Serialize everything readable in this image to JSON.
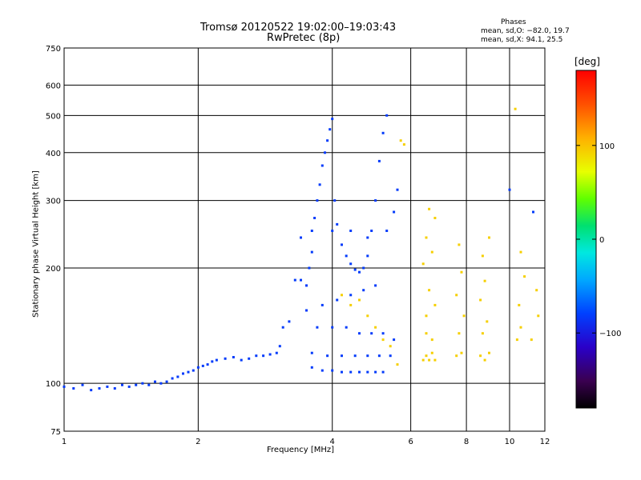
{
  "header": {
    "title_line1": "Tromsø 20120522 19:02:00–19:03:43",
    "title_line2": "RwPretec (8p)"
  },
  "phases_box": {
    "title": "Phases",
    "o_line": "mean, sd,O: −82.0, 19.7",
    "x_line": "mean, sd,X:  94.1, 25.5"
  },
  "colorbar": {
    "label": "[deg]",
    "ticks": [
      "100",
      "0",
      "−100"
    ],
    "tick_values": [
      100,
      0,
      -100
    ],
    "range": [
      -180,
      180
    ]
  },
  "chart_data": {
    "type": "scatter",
    "xlabel": "Frequency [MHz]",
    "ylabel": "Stationary phase Virtual Height [km]",
    "xscale": "log",
    "yscale": "log",
    "xlim": [
      1,
      12
    ],
    "ylim": [
      75,
      750
    ],
    "x_ticks": [
      1,
      2,
      4,
      6,
      8,
      10,
      12
    ],
    "x_tick_labels": [
      "1",
      "2",
      "4",
      "6",
      "8",
      "10",
      "12"
    ],
    "y_ticks": [
      75,
      100,
      200,
      300,
      400,
      500,
      600,
      750
    ],
    "y_tick_labels": [
      "75",
      "100",
      "200",
      "300",
      "400",
      "500",
      "600",
      "750"
    ],
    "grid": true,
    "series": [
      {
        "mode": "O",
        "phase_deg": -82.0,
        "points": [
          [
            1.0,
            98
          ],
          [
            1.05,
            97
          ],
          [
            1.1,
            99
          ],
          [
            1.15,
            96
          ],
          [
            1.2,
            97
          ],
          [
            1.25,
            98
          ],
          [
            1.3,
            97
          ],
          [
            1.35,
            99
          ],
          [
            1.4,
            98
          ],
          [
            1.45,
            99
          ],
          [
            1.5,
            100
          ],
          [
            1.55,
            99
          ],
          [
            1.6,
            101
          ],
          [
            1.65,
            100
          ],
          [
            1.7,
            101
          ],
          [
            1.75,
            103
          ],
          [
            1.8,
            104
          ],
          [
            1.85,
            106
          ],
          [
            1.9,
            107
          ],
          [
            1.95,
            108
          ],
          [
            2.0,
            110
          ],
          [
            2.05,
            111
          ],
          [
            2.1,
            112
          ],
          [
            2.15,
            114
          ],
          [
            2.2,
            115
          ],
          [
            2.3,
            116
          ],
          [
            2.4,
            117
          ],
          [
            2.5,
            115
          ],
          [
            2.6,
            116
          ],
          [
            2.7,
            118
          ],
          [
            2.8,
            118
          ],
          [
            2.9,
            119
          ],
          [
            3.0,
            120
          ],
          [
            3.05,
            125
          ],
          [
            3.1,
            140
          ],
          [
            3.2,
            145
          ],
          [
            3.3,
            186
          ],
          [
            3.4,
            186
          ],
          [
            3.5,
            180
          ],
          [
            3.55,
            200
          ],
          [
            3.6,
            220
          ],
          [
            3.65,
            270
          ],
          [
            3.7,
            300
          ],
          [
            3.75,
            330
          ],
          [
            3.8,
            370
          ],
          [
            3.85,
            400
          ],
          [
            3.9,
            430
          ],
          [
            3.95,
            460
          ],
          [
            4.0,
            490
          ],
          [
            4.05,
            300
          ],
          [
            4.1,
            260
          ],
          [
            4.2,
            230
          ],
          [
            4.3,
            215
          ],
          [
            4.4,
            205
          ],
          [
            4.5,
            198
          ],
          [
            4.6,
            195
          ],
          [
            4.7,
            200
          ],
          [
            4.8,
            215
          ],
          [
            4.9,
            250
          ],
          [
            5.0,
            300
          ],
          [
            5.1,
            380
          ],
          [
            5.2,
            450
          ],
          [
            5.3,
            500
          ],
          [
            3.6,
            110
          ],
          [
            3.8,
            108
          ],
          [
            4.0,
            108
          ],
          [
            4.2,
            107
          ],
          [
            4.4,
            107
          ],
          [
            4.6,
            107
          ],
          [
            4.8,
            107
          ],
          [
            5.0,
            107
          ],
          [
            5.2,
            107
          ],
          [
            3.6,
            120
          ],
          [
            3.9,
            118
          ],
          [
            4.2,
            118
          ],
          [
            4.5,
            118
          ],
          [
            4.8,
            118
          ],
          [
            5.1,
            118
          ],
          [
            5.4,
            118
          ],
          [
            3.7,
            140
          ],
          [
            4.0,
            140
          ],
          [
            4.3,
            140
          ],
          [
            4.6,
            135
          ],
          [
            4.9,
            135
          ],
          [
            5.2,
            135
          ],
          [
            5.5,
            130
          ],
          [
            3.5,
            155
          ],
          [
            3.8,
            160
          ],
          [
            4.1,
            165
          ],
          [
            4.4,
            170
          ],
          [
            4.7,
            175
          ],
          [
            5.0,
            180
          ],
          [
            5.3,
            250
          ],
          [
            5.5,
            280
          ],
          [
            5.6,
            320
          ],
          [
            3.4,
            240
          ],
          [
            3.6,
            250
          ],
          [
            4.0,
            250
          ],
          [
            4.4,
            250
          ],
          [
            4.8,
            240
          ],
          [
            10.0,
            320
          ],
          [
            11.3,
            280
          ]
        ]
      },
      {
        "mode": "X",
        "phase_deg": 94.1,
        "points": [
          [
            4.2,
            170
          ],
          [
            4.4,
            160
          ],
          [
            4.6,
            165
          ],
          [
            4.8,
            150
          ],
          [
            5.0,
            140
          ],
          [
            5.2,
            130
          ],
          [
            5.4,
            125
          ],
          [
            5.6,
            112
          ],
          [
            5.7,
            430
          ],
          [
            5.8,
            420
          ],
          [
            6.4,
            115
          ],
          [
            6.5,
            118
          ],
          [
            6.6,
            115
          ],
          [
            6.7,
            120
          ],
          [
            6.8,
            115
          ],
          [
            6.5,
            135
          ],
          [
            6.7,
            130
          ],
          [
            6.5,
            150
          ],
          [
            6.8,
            160
          ],
          [
            6.6,
            175
          ],
          [
            6.4,
            205
          ],
          [
            6.7,
            220
          ],
          [
            6.5,
            240
          ],
          [
            6.8,
            270
          ],
          [
            6.6,
            285
          ],
          [
            7.6,
            118
          ],
          [
            7.8,
            120
          ],
          [
            7.7,
            135
          ],
          [
            7.9,
            150
          ],
          [
            7.6,
            170
          ],
          [
            7.8,
            195
          ],
          [
            7.7,
            230
          ],
          [
            8.6,
            118
          ],
          [
            8.8,
            115
          ],
          [
            9.0,
            120
          ],
          [
            8.7,
            135
          ],
          [
            8.9,
            145
          ],
          [
            8.6,
            165
          ],
          [
            8.8,
            185
          ],
          [
            8.7,
            215
          ],
          [
            9.0,
            240
          ],
          [
            10.4,
            130
          ],
          [
            10.6,
            140
          ],
          [
            10.5,
            160
          ],
          [
            10.8,
            190
          ],
          [
            10.6,
            220
          ],
          [
            11.2,
            130
          ],
          [
            11.6,
            150
          ],
          [
            11.5,
            175
          ],
          [
            10.3,
            520
          ]
        ]
      }
    ]
  }
}
